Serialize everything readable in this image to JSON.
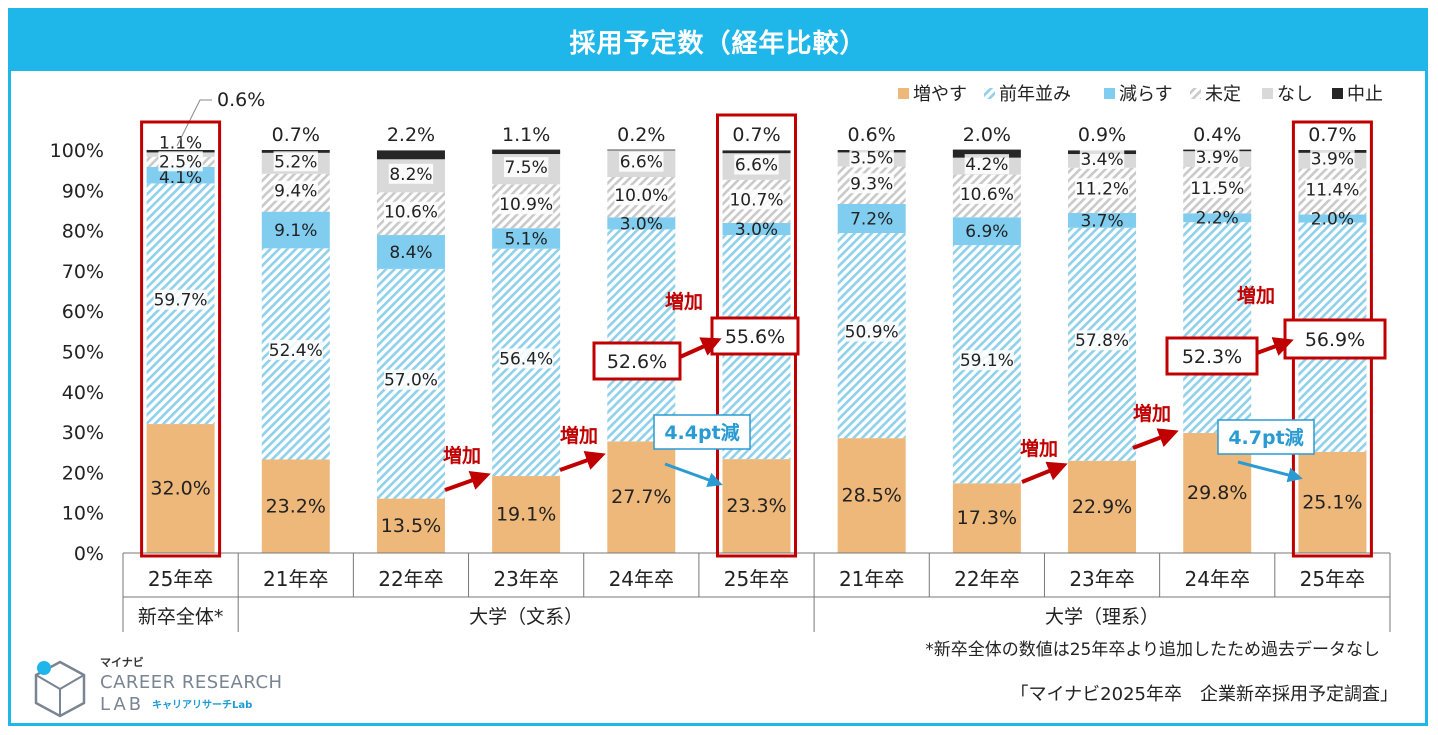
{
  "title": "採用予定数（経年比較）",
  "colors": {
    "increase": "#eeb87b",
    "same_stripe": "#8fd0ea",
    "decrease": "#80cdf0",
    "undecided_stripe": "#c9c9c9",
    "none": "#d9d9d9",
    "stop": "#262626",
    "frame": "#1fb6ea",
    "highlight": "#c00000",
    "accent_blue": "#2a9bd2"
  },
  "chart_data": {
    "type": "bar",
    "stacked": true,
    "ylim": [
      0,
      100
    ],
    "yticks": [
      "0%",
      "10%",
      "20%",
      "30%",
      "40%",
      "50%",
      "60%",
      "70%",
      "80%",
      "90%",
      "100%"
    ],
    "legend": [
      "増やす",
      "前年並み",
      "減らす",
      "未定",
      "なし",
      "中止"
    ],
    "categories": [
      "25年卒",
      "21年卒",
      "22年卒",
      "23年卒",
      "24年卒",
      "25年卒",
      "21年卒",
      "22年卒",
      "23年卒",
      "24年卒",
      "25年卒"
    ],
    "groups": [
      {
        "label": "新卒全体*",
        "span": 1
      },
      {
        "label": "大学（文系）",
        "span": 5
      },
      {
        "label": "大学（理系）",
        "span": 5
      }
    ],
    "series": [
      {
        "name": "増やす",
        "values": [
          32.0,
          23.2,
          13.5,
          19.1,
          27.7,
          23.3,
          28.5,
          17.3,
          22.9,
          29.8,
          25.1
        ],
        "labels": [
          "32.0%",
          "23.2%",
          "13.5%",
          "19.1%",
          "27.7%",
          "23.3%",
          "28.5%",
          "17.3%",
          "22.9%",
          "29.8%",
          "25.1%"
        ]
      },
      {
        "name": "前年並み",
        "values": [
          59.7,
          52.4,
          57.0,
          56.4,
          52.6,
          55.6,
          50.9,
          59.1,
          57.8,
          52.3,
          56.9
        ],
        "labels": [
          "59.7%",
          "52.4%",
          "57.0%",
          "56.4%",
          "",
          "",
          "50.9%",
          "59.1%",
          "57.8%",
          "",
          ""
        ]
      },
      {
        "name": "減らす",
        "values": [
          4.1,
          9.1,
          8.4,
          5.1,
          3.0,
          3.0,
          7.2,
          6.9,
          3.7,
          2.2,
          2.0
        ],
        "labels": [
          "4.1%",
          "9.1%",
          "8.4%",
          "5.1%",
          "3.0%",
          "3.0%",
          "7.2%",
          "6.9%",
          "3.7%",
          "2.2%",
          "2.0%"
        ]
      },
      {
        "name": "未定",
        "values": [
          2.5,
          9.4,
          10.6,
          10.9,
          10.0,
          10.7,
          9.3,
          10.6,
          11.2,
          11.5,
          11.4
        ],
        "labels": [
          "2.5%",
          "9.4%",
          "10.6%",
          "10.9%",
          "10.0%",
          "10.7%",
          "9.3%",
          "10.6%",
          "11.2%",
          "11.5%",
          "11.4%"
        ]
      },
      {
        "name": "なし",
        "values": [
          1.1,
          5.2,
          8.2,
          7.5,
          6.6,
          6.6,
          3.5,
          4.2,
          3.4,
          3.9,
          3.9
        ],
        "labels": [
          "1.1%",
          "5.2%",
          "8.2%",
          "7.5%",
          "6.6%",
          "6.6%",
          "3.5%",
          "4.2%",
          "3.4%",
          "3.9%",
          "3.9%"
        ]
      },
      {
        "name": "中止",
        "values": [
          0.6,
          0.7,
          2.2,
          1.1,
          0.2,
          0.7,
          0.6,
          2.0,
          0.9,
          0.4,
          0.7
        ],
        "labels": [
          "",
          "0.7%",
          "2.2%",
          "1.1%",
          "0.2%",
          "0.7%",
          "0.6%",
          "2.0%",
          "0.9%",
          "0.4%",
          "0.7%"
        ]
      }
    ],
    "callout_first_stop": "0.6%",
    "annotations": {
      "increase_label": "増加",
      "bunkei_same_prev": "52.6%",
      "bunkei_same_curr": "55.6%",
      "bunkei_decrease_note": "4.4pt減",
      "rikei_same_prev": "52.3%",
      "rikei_same_curr": "56.9%",
      "rikei_decrease_note": "4.7pt減"
    },
    "highlighted_bars": [
      0,
      5,
      10
    ]
  },
  "footnote": "*新卒全体の数値は25年卒より追加したため過去データなし",
  "logo": {
    "top": "マイナビ",
    "line1": "CAREER RESEARCH",
    "line2": "LAB",
    "kana": "キャリアリサーチLab"
  },
  "source": "「マイナビ2025年卒　企業新卒採用予定調査」"
}
